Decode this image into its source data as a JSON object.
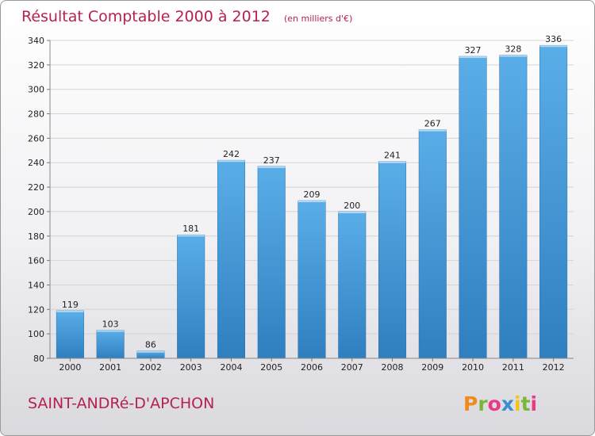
{
  "chart_data": {
    "type": "bar",
    "title": "Résultat Comptable 2000 à 2012",
    "subtitle": "(en milliers d'€)",
    "categories": [
      "2000",
      "2001",
      "2002",
      "2003",
      "2004",
      "2005",
      "2006",
      "2007",
      "2008",
      "2009",
      "2010",
      "2011",
      "2012"
    ],
    "values": [
      119,
      103,
      86,
      181,
      242,
      237,
      209,
      200,
      241,
      267,
      327,
      328,
      336
    ],
    "ylim": [
      80,
      340
    ],
    "yticks": [
      80,
      100,
      120,
      140,
      160,
      180,
      200,
      220,
      240,
      260,
      280,
      300,
      320,
      340
    ],
    "grid": true,
    "bar_color": "#3d8fd6"
  },
  "footer": {
    "commune": "SAINT-ANDRé-D'APCHON",
    "logo": "Proxiti",
    "logo_colors": [
      "#f08a1c",
      "#7ab638",
      "#e83a86",
      "#3a8fd0",
      "#f4c318",
      "#7ab638",
      "#e83a86"
    ]
  }
}
